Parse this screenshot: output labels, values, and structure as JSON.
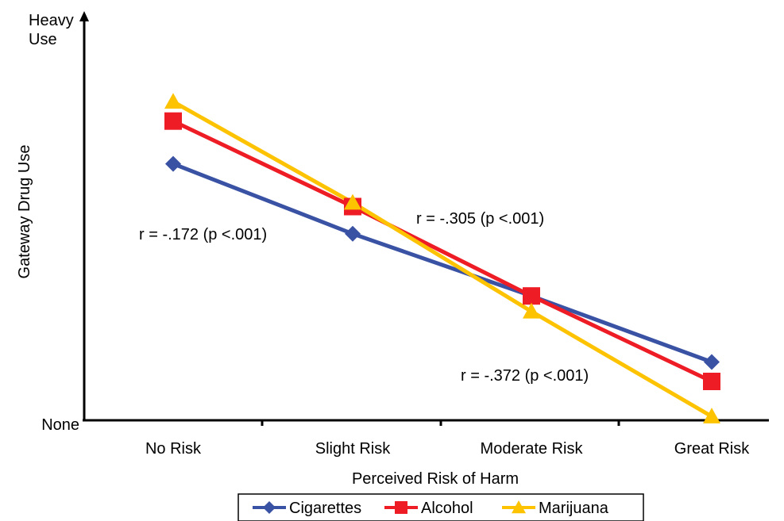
{
  "chart_data": {
    "type": "line",
    "title": "",
    "xlabel": "Perceived Risk of Harm",
    "ylabel": "Gateway Drug Use",
    "categories": [
      "No Risk",
      "Slight Risk",
      "Moderate Risk",
      "Great Risk"
    ],
    "y_tick_labels": {
      "top_line1": "Heavy",
      "top_line2": "Use",
      "bottom": "None"
    },
    "ylim": [
      0,
      10
    ],
    "grid": false,
    "legend_position": "bottom",
    "series": [
      {
        "name": "Cigarettes",
        "values": [
          6.6,
          4.8,
          3.2,
          1.5
        ],
        "color": "#3a52a4",
        "marker": "diamond"
      },
      {
        "name": "Alcohol",
        "values": [
          7.7,
          5.5,
          3.2,
          1.0
        ],
        "color": "#ee1c25",
        "marker": "square"
      },
      {
        "name": "Marijuana",
        "values": [
          8.2,
          5.6,
          2.8,
          0.1
        ],
        "color": "#fdc300",
        "marker": "triangle"
      }
    ],
    "annotations": [
      {
        "text": "r = -.172 (p <.001)"
      },
      {
        "text": "r = -.305 (p <.001)"
      },
      {
        "text": "r = -.372 (p <.001)"
      }
    ]
  }
}
